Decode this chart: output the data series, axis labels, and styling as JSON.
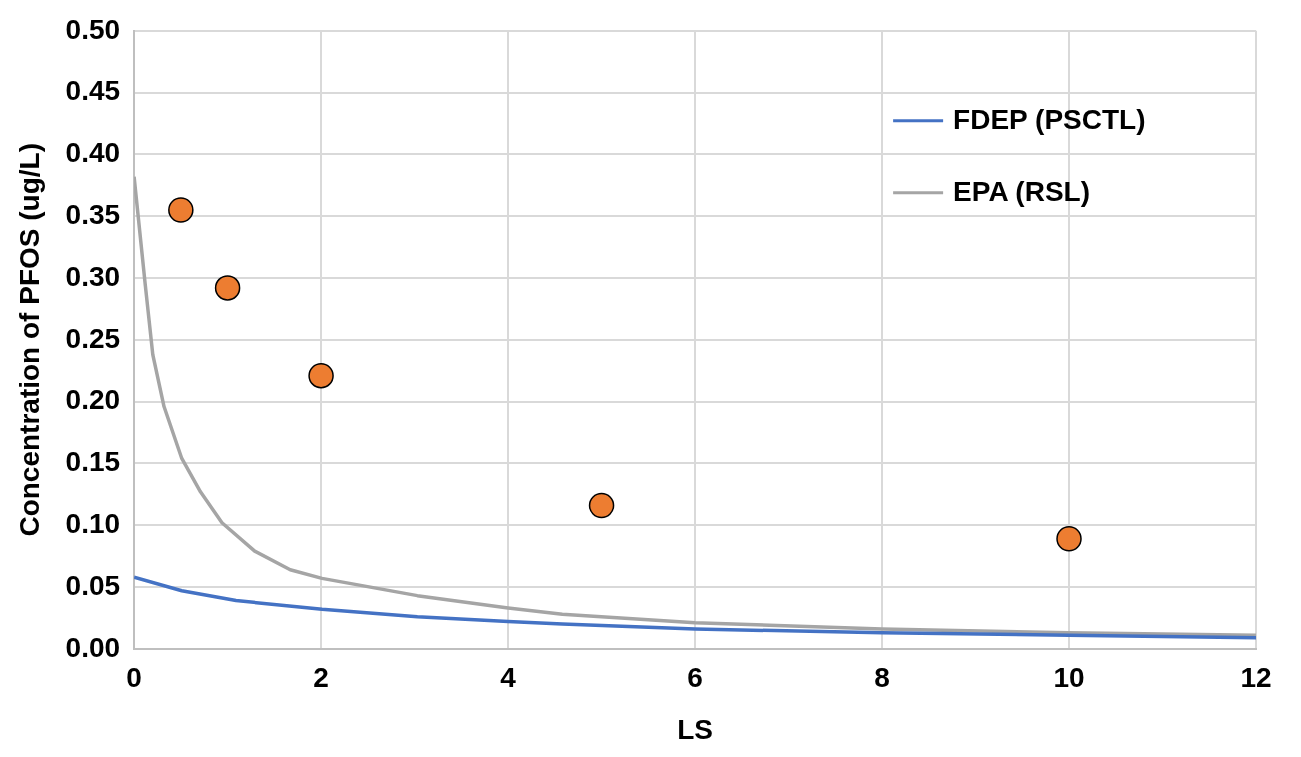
{
  "chart_data": {
    "type": "line",
    "xlabel": "LS",
    "ylabel": "Concentration of PFOS (ug/L)",
    "xlim": [
      0,
      12
    ],
    "xticks": [
      0,
      2,
      4,
      6,
      8,
      10,
      12
    ],
    "ylim": [
      0,
      0.5
    ],
    "yticks": [
      {
        "value": 0,
        "label": "0.00"
      },
      {
        "value": 0.05,
        "label": "0.05"
      },
      {
        "value": 0.1,
        "label": "0.10"
      },
      {
        "value": 0.15,
        "label": "0.15"
      },
      {
        "value": 0.2,
        "label": "0.20"
      },
      {
        "value": 0.25,
        "label": "0.25"
      },
      {
        "value": 0.3,
        "label": "0.30"
      },
      {
        "value": 0.35,
        "label": "0.35"
      },
      {
        "value": 0.4,
        "label": "0.40"
      },
      {
        "value": 0.45,
        "label": "0.45"
      },
      {
        "value": 0.5,
        "label": "0.50"
      }
    ],
    "grid": true,
    "legend": "top right",
    "marker": "none",
    "line_style": "solid",
    "series": [
      {
        "name": "FDEP (PSCTL)",
        "color": "#4472c4",
        "x": [
          0,
          0.51,
          1.09,
          2.01,
          3.03,
          4,
          4.58,
          6,
          8,
          10,
          12
        ],
        "values": [
          0.058,
          0.047,
          0.039,
          0.032,
          0.026,
          0.022,
          0.02,
          0.016,
          0.013,
          0.011,
          0.009
        ]
      },
      {
        "name": "EPA (RSL)",
        "color": "#a5a5a5",
        "x": [
          0,
          0.12,
          0.2,
          0.32,
          0.51,
          0.71,
          0.94,
          1.29,
          1.67,
          2.01,
          3.03,
          4,
          4.58,
          6,
          8,
          10,
          12
        ],
        "values": [
          0.382,
          0.294,
          0.238,
          0.196,
          0.154,
          0.127,
          0.102,
          0.079,
          0.064,
          0.057,
          0.043,
          0.033,
          0.028,
          0.021,
          0.016,
          0.013,
          0.011
        ]
      },
      {
        "type": "scatter",
        "marker": "circle",
        "color": "#ed7d31",
        "x": [
          0.5,
          1,
          2,
          5,
          10
        ],
        "values": [
          0.355,
          0.292,
          0.221,
          0.116,
          0.089
        ]
      }
    ]
  }
}
